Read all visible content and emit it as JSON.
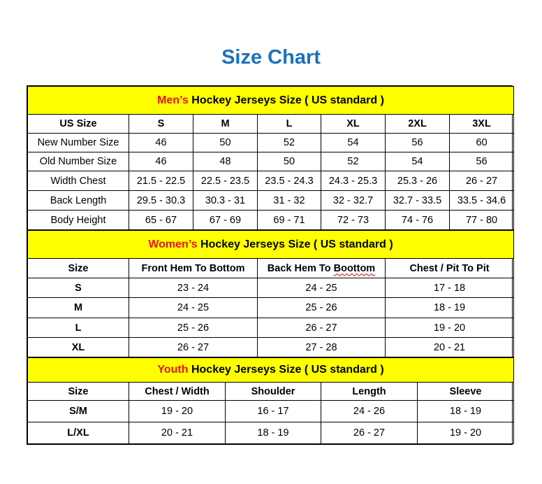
{
  "title": "Size Chart",
  "colors": {
    "title": "#1a72bd",
    "band": "#ffff00",
    "highlight": "#e8141a"
  },
  "men": {
    "title_highlight": "Men’s",
    "title_rest": " Hockey Jerseys Size ( US standard )",
    "headers": [
      "US Size",
      "S",
      "M",
      "L",
      "XL",
      "2XL",
      "3XL"
    ],
    "rows": [
      [
        "New Number Size",
        "46",
        "50",
        "52",
        "54",
        "56",
        "60"
      ],
      [
        "Old Number Size",
        "46",
        "48",
        "50",
        "52",
        "54",
        "56"
      ],
      [
        "Width Chest",
        "21.5 - 22.5",
        "22.5 - 23.5",
        "23.5 - 24.3",
        "24.3 - 25.3",
        "25.3 - 26",
        "26 - 27"
      ],
      [
        "Back Length",
        "29.5 - 30.3",
        "30.3 - 31",
        "31 - 32",
        "32 - 32.7",
        "32.7 - 33.5",
        "33.5 - 34.6"
      ],
      [
        "Body Height",
        "65 - 67",
        "67 - 69",
        "69 - 71",
        "72 - 73",
        "74 - 76",
        "77 - 80"
      ]
    ]
  },
  "women": {
    "title_highlight": "Women’s",
    "title_rest": " Hockey Jerseys Size ( US standard )",
    "headers": [
      "Size",
      "Front Hem To Bottom",
      "Back Hem To Boottom",
      "Chest / Pit To Pit"
    ],
    "rows": [
      [
        "S",
        "23 - 24",
        "24 - 25",
        "17 - 18"
      ],
      [
        "M",
        "24 - 25",
        "25 - 26",
        "18 - 19"
      ],
      [
        "L",
        "25 - 26",
        "26 - 27",
        "19 - 20"
      ],
      [
        "XL",
        "26 - 27",
        "27 - 28",
        "20 - 21"
      ]
    ]
  },
  "youth": {
    "title_highlight": "Youth",
    "title_rest": " Hockey Jerseys Size ( US standard )",
    "headers": [
      "Size",
      "Chest / Width",
      "Shoulder",
      "Length",
      "Sleeve"
    ],
    "rows": [
      [
        "S/M",
        "19 - 20",
        "16 - 17",
        "24 - 26",
        "18 - 19"
      ],
      [
        "L/XL",
        "20 - 21",
        "18 - 19",
        "26 - 27",
        "19 - 20"
      ]
    ]
  }
}
